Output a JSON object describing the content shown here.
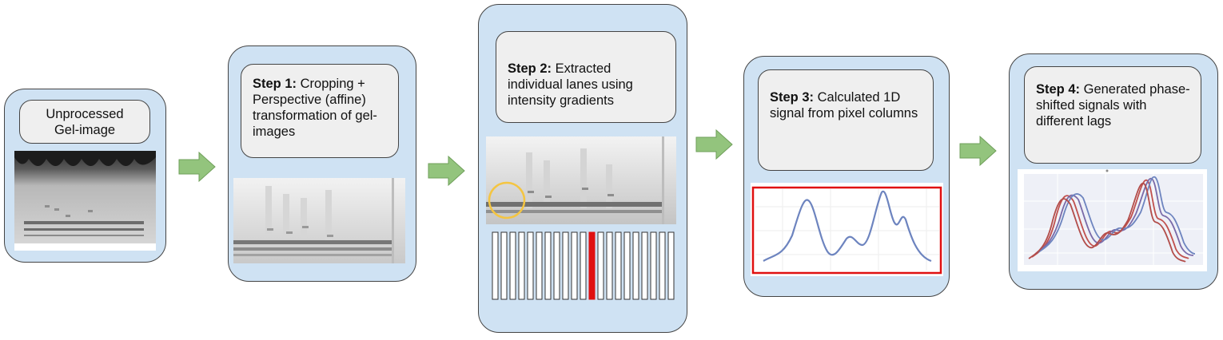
{
  "panels": [
    {
      "id": "raw",
      "title": "Unprocessed Gel-image"
    },
    {
      "id": "step1",
      "step": "Step 1:",
      "text": "Cropping + Perspective (affine) transformation of gel-images"
    },
    {
      "id": "step2",
      "step": "Step 2:",
      "text": "Extracted individual lanes using intensity gradients"
    },
    {
      "id": "step3",
      "step": "Step 3:",
      "text": "Calculated 1D signal from pixel columns"
    },
    {
      "id": "step4",
      "step": "Step 4:",
      "text": "Generated phase-shifted signals with different lags"
    }
  ],
  "raw_title_lines": [
    "Unprocessed",
    "Gel-image"
  ],
  "colors": {
    "panel_fill": "#cfe2f3",
    "label_fill": "#efefef",
    "arrow_fill": "#93c47d",
    "highlight_red": "#e01010",
    "circle_yellow": "#f4c542",
    "signal_blue": "#6d84bf",
    "signal_red": "#c0504d"
  },
  "lanes": {
    "count": 21,
    "highlighted_index": 11
  }
}
